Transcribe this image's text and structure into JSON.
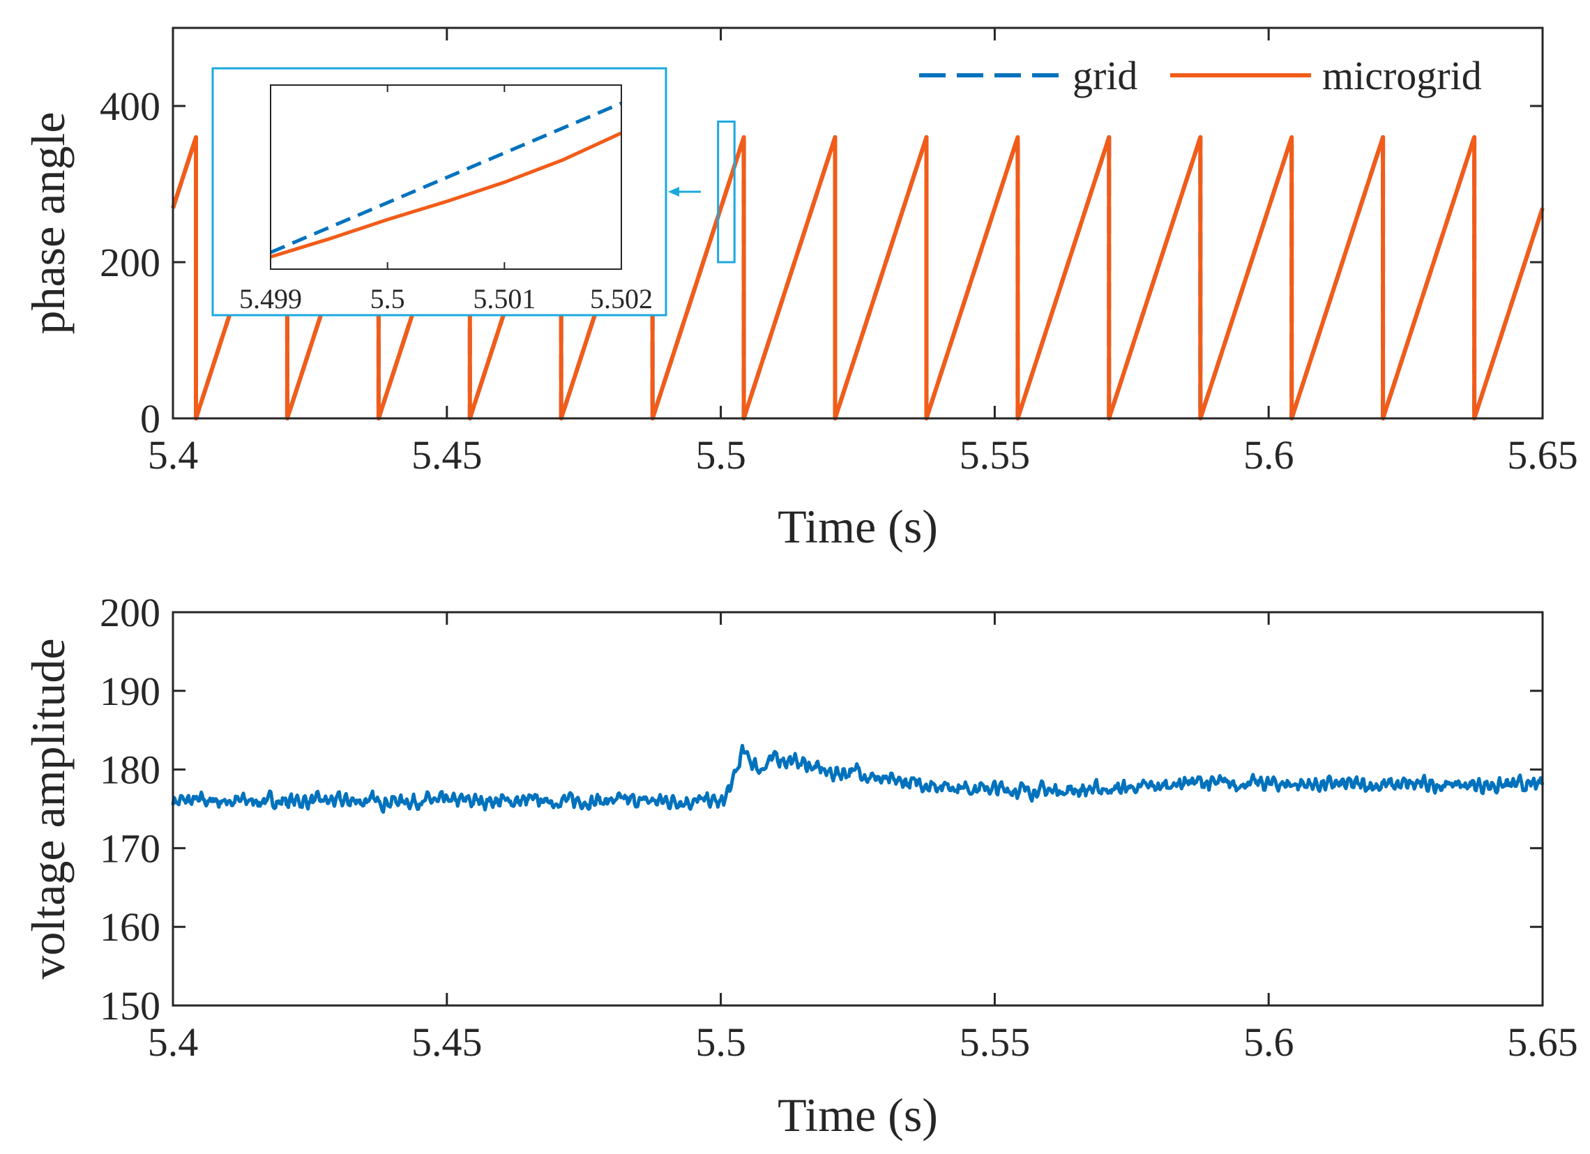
{
  "chart_data": [
    {
      "type": "line",
      "xlabel": "Time (s)",
      "ylabel": "phase angle",
      "xlim": [
        5.4,
        5.65
      ],
      "ylim": [
        0,
        500
      ],
      "xticks": [
        "5.4",
        "5.45",
        "5.5",
        "5.55",
        "5.6",
        "5.65"
      ],
      "yticks": [
        "0",
        "200",
        "400"
      ],
      "grid": false,
      "legend_position": "top-right",
      "frequency_hz": 60,
      "wrap_degrees": 360,
      "series": [
        {
          "name": "grid",
          "style": "dashed",
          "color": "#0072BD",
          "x": [
            5.4,
            5.4042,
            5.4042,
            5.65
          ],
          "y": [
            270,
            360,
            0,
            270
          ]
        },
        {
          "name": "microgrid",
          "style": "solid",
          "color": "#F25C19",
          "x": [
            5.4,
            5.4042,
            5.4042,
            5.65
          ],
          "y": [
            270,
            360,
            0,
            270
          ]
        }
      ],
      "zoom_box": {
        "x": [
          5.4995,
          5.5025
        ],
        "y": [
          200,
          380
        ],
        "color": "#1BA8E0"
      },
      "inset": {
        "xlim": [
          5.499,
          5.502
        ],
        "xticks": [
          "5.499",
          "5.5",
          "5.501",
          "5.502"
        ],
        "series": [
          {
            "name": "grid",
            "style": "dashed",
            "color": "#0072BD",
            "x": [
              5.499,
              5.502
            ],
            "y": [
              0.0,
              1.0
            ]
          },
          {
            "name": "microgrid",
            "style": "solid",
            "color": "#F25C19",
            "x": [
              5.499,
              5.4995,
              5.5,
              5.5005,
              5.501,
              5.5015,
              5.502
            ],
            "y": [
              -0.03,
              0.09,
              0.22,
              0.34,
              0.47,
              0.62,
              0.8
            ]
          }
        ]
      }
    },
    {
      "type": "line",
      "xlabel": "Time (s)",
      "ylabel": "voltage amplitude",
      "xlim": [
        5.4,
        5.65
      ],
      "ylim": [
        150,
        200
      ],
      "xticks": [
        "5.4",
        "5.45",
        "5.5",
        "5.55",
        "5.6",
        "5.65"
      ],
      "yticks": [
        "150",
        "160",
        "170",
        "180",
        "190",
        "200"
      ],
      "grid": false,
      "series": [
        {
          "color": "#0072BD",
          "x": [
            5.4,
            5.41,
            5.42,
            5.43,
            5.44,
            5.45,
            5.46,
            5.47,
            5.48,
            5.49,
            5.499,
            5.5,
            5.502,
            5.504,
            5.507,
            5.51,
            5.515,
            5.52,
            5.525,
            5.53,
            5.54,
            5.55,
            5.56,
            5.57,
            5.58,
            5.585,
            5.59,
            5.6,
            5.61,
            5.62,
            5.63,
            5.64,
            5.65
          ],
          "y": [
            176,
            176,
            176,
            176,
            176,
            176,
            176,
            176,
            176,
            176,
            176,
            175.5,
            178,
            182.3,
            180,
            181.5,
            180.8,
            179.5,
            179.8,
            178.5,
            178,
            177.5,
            177.3,
            177.5,
            177.8,
            178.5,
            178.2,
            178.2,
            178.1,
            178,
            178.1,
            178,
            178
          ]
        }
      ]
    }
  ]
}
